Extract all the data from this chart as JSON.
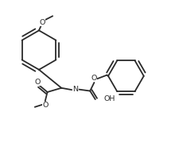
{
  "bg_color": "#ffffff",
  "line_color": "#2a2a2a",
  "line_width": 1.3,
  "figsize": [
    2.25,
    1.99
  ],
  "dpi": 100,
  "xlim": [
    0,
    9.5
  ],
  "ylim": [
    0,
    8.4
  ]
}
